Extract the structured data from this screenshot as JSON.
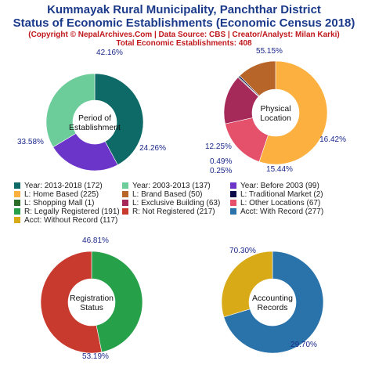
{
  "header": {
    "title_line1": "Kummayak Rural Municipality, Panchthar District",
    "title_line2": "Status of Economic Establishments (Economic Census 2018)",
    "credit": "(Copyright © NepalArchives.Com | Data Source: CBS | Creator/Analyst: Milan Karki)",
    "total": "Total Economic Establishments: 408"
  },
  "chart_data": [
    {
      "type": "pie",
      "center_label": [
        "Period of",
        "Establishment"
      ],
      "slices": [
        {
          "label": "Year: 2013-2018",
          "value": 172,
          "pct_label": "42.16%",
          "color": "#0e6a66"
        },
        {
          "label": "Year: Before 2003",
          "value": 99,
          "pct_label": "24.26%",
          "color": "#6a35c8"
        },
        {
          "label": "Year: 2003-2013",
          "value": 137,
          "pct_label": "33.58%",
          "color": "#6ccc9a"
        }
      ]
    },
    {
      "type": "pie",
      "center_label": [
        "Physical",
        "Location"
      ],
      "slices": [
        {
          "label": "L: Home Based",
          "value": 225,
          "pct_label": "55.15%",
          "color": "#fbb040"
        },
        {
          "label": "L: Other Locations",
          "value": 67,
          "pct_label": "16.42%",
          "color": "#e5506b"
        },
        {
          "label": "L: Exclusive Building",
          "value": 63,
          "pct_label": "15.44%",
          "color": "#a52a5a"
        },
        {
          "label": "L: Shopping Mall",
          "value": 1,
          "pct_label": "0.25%",
          "color": "#2a6e2a"
        },
        {
          "label": "L: Traditional Market",
          "value": 2,
          "pct_label": "0.49%",
          "color": "#0b0b4a"
        },
        {
          "label": "L: Brand Based",
          "value": 50,
          "pct_label": "12.25%",
          "color": "#b8652a"
        }
      ]
    },
    {
      "type": "pie",
      "center_label": [
        "Registration",
        "Status"
      ],
      "slices": [
        {
          "label": "R: Legally Registered",
          "value": 191,
          "pct_label": "46.81%",
          "color": "#27a04a"
        },
        {
          "label": "R: Not Registered",
          "value": 217,
          "pct_label": "53.19%",
          "color": "#c93a2e"
        }
      ]
    },
    {
      "type": "pie",
      "center_label": [
        "Accounting",
        "Records"
      ],
      "slices": [
        {
          "label": "Acct: With Record",
          "value": 277,
          "pct_label": "70.30%",
          "color": "#2a72aa"
        },
        {
          "label": "Acct: Without Record",
          "value": 117,
          "pct_label": "29.70%",
          "color": "#d8aa18"
        }
      ]
    }
  ],
  "legend": [
    {
      "text": "Year: 2013-2018 (172)",
      "color": "#0e6a66"
    },
    {
      "text": "Year: 2003-2013 (137)",
      "color": "#6ccc9a"
    },
    {
      "text": "Year: Before 2003 (99)",
      "color": "#6a35c8"
    },
    {
      "text": "L: Home Based (225)",
      "color": "#fbb040"
    },
    {
      "text": "L: Brand Based (50)",
      "color": "#b8652a"
    },
    {
      "text": "L: Traditional Market (2)",
      "color": "#0b0b4a"
    },
    {
      "text": "L: Shopping Mall (1)",
      "color": "#2a6e2a"
    },
    {
      "text": "L: Exclusive Building (63)",
      "color": "#a52a5a"
    },
    {
      "text": "L: Other Locations (67)",
      "color": "#e5506b"
    },
    {
      "text": "R: Legally Registered (191)",
      "color": "#27a04a"
    },
    {
      "text": "R: Not Registered (217)",
      "color": "#c93a2e"
    },
    {
      "text": "Acct: With Record (277)",
      "color": "#2a72aa"
    },
    {
      "text": "Acct: Without Record (117)",
      "color": "#d8aa18"
    }
  ]
}
